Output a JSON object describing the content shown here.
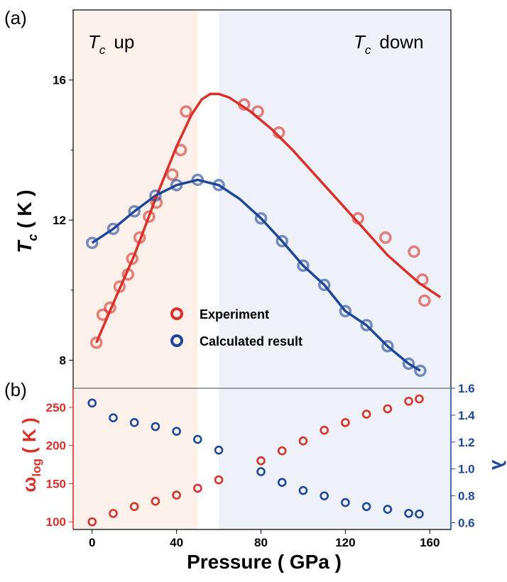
{
  "colors": {
    "experiment": "#d9312a",
    "calculated": "#1f4799",
    "region_up": "#fbf0ea",
    "region_down": "#eef1f7"
  },
  "chart_data": [
    {
      "panel": "(a)",
      "type": "scatter",
      "xlim": [
        -9,
        170
      ],
      "ylim": [
        7.2,
        18.0
      ],
      "yticks": [
        8,
        12,
        16
      ],
      "region_labels": {
        "up_var": "T",
        "up_sub": "c",
        "up_text": "up",
        "down_var": "T",
        "down_sub": "c",
        "down_text": "down"
      },
      "regions": [
        {
          "name": "Tc up",
          "x": [
            -9,
            50
          ]
        },
        {
          "name": "Tc down",
          "x": [
            60,
            170
          ]
        }
      ],
      "ylabel": {
        "var": "T",
        "sub": "c",
        "rest": " ( K )"
      },
      "legend": {
        "experiment": "Experiment",
        "calculated": "Calculated result"
      },
      "series": [
        {
          "name": "Experiment",
          "points": [
            {
              "x": 2,
              "y": 8.5
            },
            {
              "x": 5,
              "y": 9.3
            },
            {
              "x": 8.5,
              "y": 9.5
            },
            {
              "x": 13,
              "y": 10.1
            },
            {
              "x": 17,
              "y": 10.45
            },
            {
              "x": 19,
              "y": 10.9
            },
            {
              "x": 22.5,
              "y": 11.5
            },
            {
              "x": 27,
              "y": 12.1
            },
            {
              "x": 30.5,
              "y": 12.5
            },
            {
              "x": 38,
              "y": 13.3
            },
            {
              "x": 42,
              "y": 14.0
            },
            {
              "x": 44.5,
              "y": 15.1
            },
            {
              "x": 72,
              "y": 15.3
            },
            {
              "x": 78.5,
              "y": 15.1
            },
            {
              "x": 88.5,
              "y": 14.5
            },
            {
              "x": 126,
              "y": 12.05
            },
            {
              "x": 139,
              "y": 11.5
            },
            {
              "x": 152.5,
              "y": 11.1
            },
            {
              "x": 156.5,
              "y": 10.3
            },
            {
              "x": 157.5,
              "y": 9.7
            }
          ],
          "fit": [
            [
              2,
              8.5
            ],
            [
              12,
              9.9
            ],
            [
              20,
              11.0
            ],
            [
              30,
              12.6
            ],
            [
              40,
              14.1
            ],
            [
              47,
              15.0
            ],
            [
              52,
              15.45
            ],
            [
              56,
              15.6
            ],
            [
              60,
              15.6
            ],
            [
              65,
              15.5
            ],
            [
              75,
              15.1
            ],
            [
              85,
              14.6
            ],
            [
              95,
              14.0
            ],
            [
              110,
              13.0
            ],
            [
              125,
              12.0
            ],
            [
              140,
              11.0
            ],
            [
              155,
              10.2
            ],
            [
              165,
              9.8
            ]
          ]
        },
        {
          "name": "Calculated result",
          "points": [
            {
              "x": 0,
              "y": 11.35
            },
            {
              "x": 10,
              "y": 11.75
            },
            {
              "x": 20,
              "y": 12.25
            },
            {
              "x": 30,
              "y": 12.7
            },
            {
              "x": 40,
              "y": 13.0
            },
            {
              "x": 50,
              "y": 13.15
            },
            {
              "x": 60,
              "y": 13.0
            },
            {
              "x": 80,
              "y": 12.05
            },
            {
              "x": 90,
              "y": 11.4
            },
            {
              "x": 100,
              "y": 10.7
            },
            {
              "x": 110,
              "y": 10.15
            },
            {
              "x": 120,
              "y": 9.4
            },
            {
              "x": 130,
              "y": 9.0
            },
            {
              "x": 140,
              "y": 8.4
            },
            {
              "x": 150,
              "y": 7.9
            },
            {
              "x": 155.5,
              "y": 7.7
            }
          ],
          "fit": [
            [
              0,
              11.35
            ],
            [
              10,
              11.75
            ],
            [
              20,
              12.25
            ],
            [
              30,
              12.7
            ],
            [
              40,
              13.0
            ],
            [
              50,
              13.15
            ],
            [
              60,
              13.0
            ],
            [
              70,
              12.6
            ],
            [
              80,
              12.05
            ],
            [
              90,
              11.4
            ],
            [
              100,
              10.7
            ],
            [
              110,
              10.15
            ],
            [
              120,
              9.4
            ],
            [
              130,
              9.0
            ],
            [
              140,
              8.4
            ],
            [
              150,
              7.9
            ],
            [
              155.5,
              7.7
            ]
          ]
        }
      ]
    },
    {
      "panel": "(b)",
      "type": "scatter",
      "xlim": [
        -9,
        170
      ],
      "xticks": [
        0,
        40,
        80,
        120,
        160
      ],
      "xlabel": "Pressure ( GPa )",
      "ylabel_left": {
        "var": "ω",
        "sub": "log",
        "rest": " ( K )"
      },
      "ylabel_right": "λ",
      "ylim_left": [
        90,
        275
      ],
      "ylim_right": [
        0.55,
        1.6
      ],
      "yticks_left": [
        100,
        150,
        200,
        250
      ],
      "yticks_right": [
        "0.6",
        "0.8",
        "1.0",
        "1.2",
        "1.4",
        "1.6"
      ],
      "series": [
        {
          "name": "ω_log",
          "axis": "left",
          "points": [
            {
              "x": 0,
              "y": 100
            },
            {
              "x": 10,
              "y": 111
            },
            {
              "x": 20,
              "y": 120
            },
            {
              "x": 30,
              "y": 127
            },
            {
              "x": 40,
              "y": 135
            },
            {
              "x": 50,
              "y": 144
            },
            {
              "x": 60,
              "y": 155
            },
            {
              "x": 80,
              "y": 180
            },
            {
              "x": 90,
              "y": 193
            },
            {
              "x": 100,
              "y": 206
            },
            {
              "x": 110,
              "y": 220
            },
            {
              "x": 120,
              "y": 230
            },
            {
              "x": 130,
              "y": 241
            },
            {
              "x": 140,
              "y": 248
            },
            {
              "x": 150,
              "y": 258
            },
            {
              "x": 155,
              "y": 261
            }
          ]
        },
        {
          "name": "λ",
          "axis": "right",
          "points": [
            {
              "x": 0,
              "y": 1.49
            },
            {
              "x": 10,
              "y": 1.38
            },
            {
              "x": 20,
              "y": 1.345
            },
            {
              "x": 30,
              "y": 1.315
            },
            {
              "x": 40,
              "y": 1.28
            },
            {
              "x": 50,
              "y": 1.22
            },
            {
              "x": 60,
              "y": 1.14
            },
            {
              "x": 80,
              "y": 0.98
            },
            {
              "x": 90,
              "y": 0.9
            },
            {
              "x": 100,
              "y": 0.84
            },
            {
              "x": 110,
              "y": 0.8
            },
            {
              "x": 120,
              "y": 0.75
            },
            {
              "x": 130,
              "y": 0.72
            },
            {
              "x": 140,
              "y": 0.7
            },
            {
              "x": 150,
              "y": 0.67
            },
            {
              "x": 155,
              "y": 0.665
            }
          ]
        }
      ]
    }
  ]
}
